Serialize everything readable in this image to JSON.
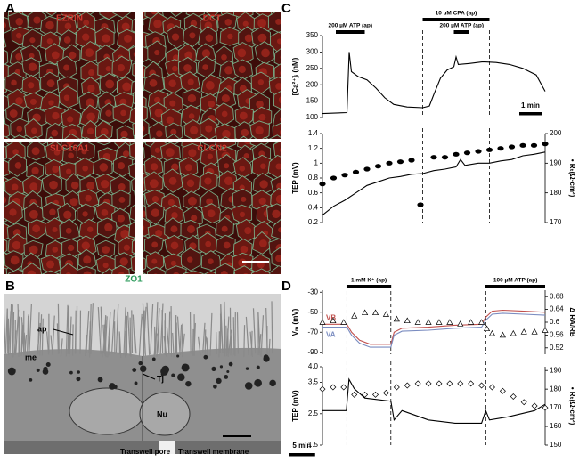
{
  "panels": {
    "a": {
      "label": "A",
      "images": [
        "EZRIN",
        "DCT",
        "SLC16A1",
        "CLCN2"
      ],
      "stain": "ZO1"
    },
    "b": {
      "label": "B",
      "annotations": [
        "ap",
        "me",
        "Tj",
        "Nu",
        "Transwell pore",
        "Transwell membrane"
      ]
    },
    "c": {
      "label": "C"
    },
    "d": {
      "label": "D"
    }
  },
  "chart_data": [
    {
      "type": "line",
      "ylabel": "[Ca²⁺]ᵢ (nM)",
      "xlim": [
        0,
        10
      ],
      "ylim": [
        100,
        350
      ],
      "yticks": [
        100,
        150,
        200,
        250,
        300,
        350
      ],
      "vlines": [
        4.5,
        7.5
      ],
      "annotations": [
        {
          "text": "200 µM ATP (ap)",
          "x": [
            0.6,
            1.9
          ]
        },
        {
          "text": "200 µM ATP (ap)",
          "x": [
            5.9,
            6.6
          ]
        },
        {
          "text": "10 µM CPA (ap)",
          "x": [
            4.5,
            7.5
          ]
        }
      ],
      "scalebar": {
        "label": "1 min",
        "length": 1,
        "corner": "lower-right"
      },
      "series": [
        {
          "style": "line",
          "color": "#000000",
          "x": [
            0,
            1.1,
            1.2,
            1.3,
            1.6,
            2.0,
            2.4,
            2.8,
            3.2,
            3.8,
            4.5,
            4.8,
            5.0,
            5.3,
            5.6,
            5.9,
            6.0,
            6.1,
            6.6,
            7.2,
            7.8,
            8.4,
            9.0,
            9.6,
            10
          ],
          "values": [
            112,
            115,
            300,
            240,
            225,
            215,
            190,
            160,
            140,
            132,
            130,
            135,
            170,
            220,
            245,
            255,
            285,
            262,
            265,
            270,
            268,
            262,
            250,
            230,
            180
          ]
        }
      ]
    },
    {
      "type": "line",
      "ylabel": "TEP (mV)",
      "y2label": "• Rₜ(Ω·cm²)",
      "xlim": [
        0,
        10
      ],
      "ylim": [
        0.2,
        1.4
      ],
      "yticks": [
        0.2,
        0.4,
        0.6,
        0.8,
        1,
        1.2,
        1.4
      ],
      "y2lim": [
        170,
        200
      ],
      "y2ticks": [
        170,
        180,
        190,
        200
      ],
      "vlines": [
        4.5,
        7.5
      ],
      "series": [
        {
          "style": "line",
          "color": "#000000",
          "x": [
            0,
            0.5,
            1,
            1.5,
            2,
            2.5,
            3,
            3.5,
            4,
            4.5,
            5,
            5.5,
            6,
            6.2,
            6.4,
            7,
            7.5,
            8,
            8.5,
            9,
            9.5,
            10
          ],
          "values": [
            0.3,
            0.42,
            0.5,
            0.6,
            0.7,
            0.75,
            0.8,
            0.82,
            0.85,
            0.86,
            0.9,
            0.92,
            0.95,
            1.05,
            0.97,
            1.0,
            1.0,
            1.03,
            1.05,
            1.1,
            1.12,
            1.15
          ]
        },
        {
          "style": "dots",
          "color": "#000000",
          "axis": "y2",
          "x": [
            0,
            0.5,
            1,
            1.5,
            2,
            2.5,
            3,
            3.5,
            4,
            4.4,
            5,
            5.5,
            6,
            6.5,
            7,
            7.5,
            8,
            8.5,
            9,
            9.5,
            10
          ],
          "values": [
            183,
            185,
            186,
            187,
            188,
            189,
            190,
            190.5,
            191,
            176,
            192,
            192,
            193,
            193.5,
            194,
            194.5,
            195,
            195.5,
            196,
            196,
            196.5
          ]
        }
      ]
    },
    {
      "type": "line",
      "ylabel": "Vₘ (mV)",
      "y2label": "Δ RA/RB",
      "xlim": [
        0,
        42
      ],
      "ylim": [
        -92,
        -28
      ],
      "yticks": [
        -30,
        -50,
        -70,
        -90
      ],
      "y2lim": [
        0.5,
        0.7
      ],
      "y2ticks": [
        0.52,
        0.56,
        0.6,
        0.64,
        0.68
      ],
      "vlines": [
        4.6,
        12.9,
        30.8
      ],
      "annotations": [
        {
          "text": "1 mM K⁺ (ap)",
          "x": [
            4.6,
            12.9
          ]
        },
        {
          "text": "100 µM ATP (ap)",
          "x": [
            30.8,
            42
          ]
        }
      ],
      "series": [
        {
          "name": "VB",
          "style": "line",
          "color": "#c0504d",
          "x": [
            0,
            4.6,
            5.5,
            7,
            9,
            12.9,
            13.5,
            15,
            20,
            25,
            30,
            30.8,
            32,
            34,
            38,
            42
          ],
          "values": [
            -62,
            -62,
            -70,
            -78,
            -82,
            -82,
            -70,
            -66,
            -65,
            -63,
            -62,
            -55,
            -49,
            -48,
            -49,
            -50
          ]
        },
        {
          "name": "VA",
          "style": "line",
          "color": "#7a8cc0",
          "x": [
            0,
            4.6,
            5.5,
            7,
            9,
            12.9,
            13.5,
            15,
            20,
            25,
            30,
            30.8,
            32,
            34,
            38,
            42
          ],
          "values": [
            -65,
            -65,
            -73,
            -81,
            -85,
            -85,
            -73,
            -69,
            -68,
            -66,
            -65,
            -58,
            -52,
            -51,
            -52,
            -53
          ]
        },
        {
          "style": "triangles",
          "color": "#000000",
          "axis": "y2",
          "x": [
            0,
            2,
            4,
            6,
            8,
            10,
            12,
            14,
            16,
            18,
            20,
            22,
            24,
            26,
            28,
            30,
            31,
            32,
            34,
            36,
            38,
            40,
            42
          ],
          "values": [
            0.6,
            0.605,
            0.6,
            0.62,
            0.63,
            0.63,
            0.625,
            0.61,
            0.605,
            0.6,
            0.6,
            0.6,
            0.6,
            0.595,
            0.6,
            0.6,
            0.58,
            0.565,
            0.56,
            0.565,
            0.57,
            0.57,
            0.575
          ]
        }
      ]
    },
    {
      "type": "line",
      "ylabel": "TEP (mV)",
      "y2label": "• Rₜ(Ω·cm²)",
      "xlim": [
        0,
        42
      ],
      "ylim": [
        1.5,
        4.0
      ],
      "yticks": [
        1.5,
        2.5,
        3.5,
        {
          "value": 4,
          "label": "4.0"
        }
      ],
      "y2lim": [
        150,
        192
      ],
      "y2ticks": [
        150,
        160,
        170,
        180,
        190
      ],
      "vlines": [
        4.6,
        12.9,
        30.8
      ],
      "scalebar": {
        "label": "5 min",
        "length": 5,
        "corner": "lower-left"
      },
      "series": [
        {
          "style": "line",
          "color": "#000000",
          "x": [
            0,
            4.5,
            5,
            6,
            8,
            12.9,
            13.5,
            15,
            20,
            25,
            30,
            30.8,
            31.5,
            35,
            40,
            42
          ],
          "values": [
            2.6,
            2.6,
            3.6,
            3.3,
            3.0,
            2.9,
            2.3,
            2.6,
            2.3,
            2.2,
            2.2,
            2.6,
            2.3,
            2.4,
            2.6,
            2.8
          ]
        },
        {
          "style": "diamonds",
          "color": "#000000",
          "axis": "y2",
          "x": [
            0,
            2,
            4,
            6,
            8,
            10,
            12,
            14,
            16,
            18,
            20,
            22,
            24,
            26,
            28,
            30,
            32,
            34,
            36,
            38,
            40,
            42
          ],
          "values": [
            180,
            181,
            181,
            177,
            177,
            177,
            178,
            181,
            182,
            183,
            183,
            183,
            183,
            183,
            183,
            182,
            181,
            179,
            176,
            173,
            171,
            170
          ]
        }
      ]
    }
  ]
}
